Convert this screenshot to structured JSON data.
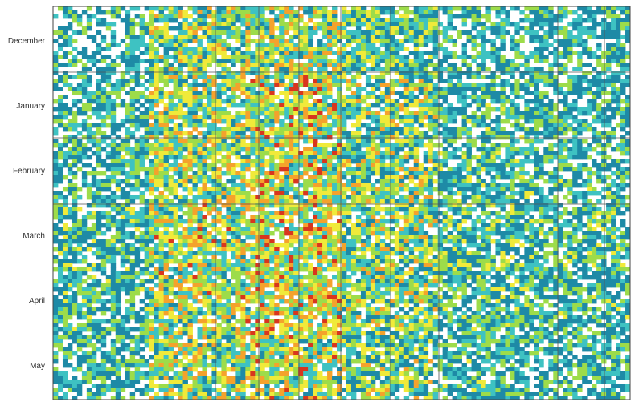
{
  "chart_data": {
    "type": "heatmap",
    "title": "",
    "xlabel": "",
    "ylabel": "",
    "y_categories": [
      "December",
      "January",
      "February",
      "March",
      "April",
      "May"
    ],
    "x_categories": [],
    "color_scale": [
      "#ffffff",
      "#1e8aa6",
      "#3ec2c2",
      "#9ddc4a",
      "#f0ea3a",
      "#f4a22c",
      "#d8361e"
    ],
    "grid": true,
    "intensity_by_column_group": [
      0.25,
      0.55,
      0.62,
      0.48,
      0.28,
      0.25
    ],
    "intensity_by_row_group": [
      0.3,
      0.42,
      0.46,
      0.55,
      0.5,
      0.4
    ]
  }
}
